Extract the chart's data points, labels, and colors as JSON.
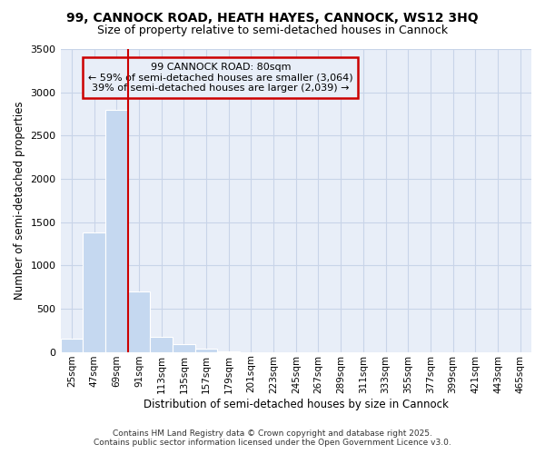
{
  "title": "99, CANNOCK ROAD, HEATH HAYES, CANNOCK, WS12 3HQ",
  "subtitle": "Size of property relative to semi-detached houses in Cannock",
  "xlabel": "Distribution of semi-detached houses by size in Cannock",
  "ylabel": "Number of semi-detached properties",
  "categories": [
    "25sqm",
    "47sqm",
    "69sqm",
    "91sqm",
    "113sqm",
    "135sqm",
    "157sqm",
    "179sqm",
    "201sqm",
    "223sqm",
    "245sqm",
    "267sqm",
    "289sqm",
    "311sqm",
    "333sqm",
    "355sqm",
    "377sqm",
    "399sqm",
    "421sqm",
    "443sqm",
    "465sqm"
  ],
  "values": [
    150,
    1380,
    2800,
    700,
    170,
    90,
    40,
    5,
    0,
    0,
    0,
    0,
    0,
    0,
    0,
    0,
    0,
    0,
    0,
    0,
    0
  ],
  "bar_color": "#c5d8f0",
  "bar_edge_color": "#ffffff",
  "grid_color": "#c8d4e8",
  "background_color": "#ffffff",
  "plot_bg_color": "#e8eef8",
  "annotation_box_color": "#cc0000",
  "property_line_color": "#cc0000",
  "property_line_x": 2.5,
  "annotation_title": "99 CANNOCK ROAD: 80sqm",
  "annotation_line1": "← 59% of semi-detached houses are smaller (3,064)",
  "annotation_line2": "39% of semi-detached houses are larger (2,039) →",
  "footnote1": "Contains HM Land Registry data © Crown copyright and database right 2025.",
  "footnote2": "Contains public sector information licensed under the Open Government Licence v3.0.",
  "ylim": [
    0,
    3500
  ],
  "yticks": [
    0,
    500,
    1000,
    1500,
    2000,
    2500,
    3000,
    3500
  ]
}
